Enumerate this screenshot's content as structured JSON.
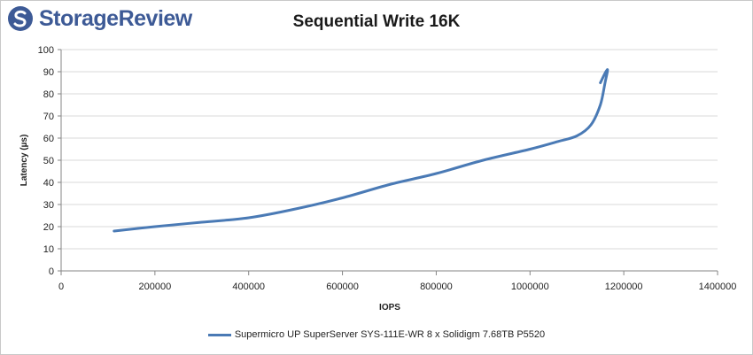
{
  "brand": {
    "name": "StorageReview"
  },
  "colors": {
    "series": "#4a7ab5",
    "grid": "#d9d9d9",
    "axis": "#868686",
    "brand": "#3d5a96"
  },
  "chart_data": {
    "type": "line",
    "title": "Sequential Write 16K",
    "xlabel": "IOPS",
    "ylabel": "Latency (µs)",
    "xlim": [
      0,
      1400000
    ],
    "ylim": [
      0,
      100
    ],
    "x_ticks": [
      0,
      200000,
      400000,
      600000,
      800000,
      1000000,
      1200000,
      1400000
    ],
    "y_ticks": [
      0,
      10,
      20,
      30,
      40,
      50,
      60,
      70,
      80,
      90,
      100
    ],
    "grid": "horizontal",
    "legend_position": "bottom",
    "series": [
      {
        "name": "Supermicro UP SuperServer SYS-111E-WR 8 x Solidigm 7.68TB P5520",
        "x": [
          113000,
          200000,
          300000,
          400000,
          500000,
          600000,
          700000,
          800000,
          900000,
          1000000,
          1060000,
          1100000,
          1130000,
          1150000,
          1160000,
          1165000,
          1150000
        ],
        "y": [
          18,
          20,
          22,
          24,
          28,
          33,
          39,
          44,
          50,
          55,
          58.5,
          61,
          66,
          75,
          85,
          91,
          85
        ]
      }
    ]
  }
}
